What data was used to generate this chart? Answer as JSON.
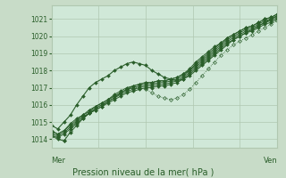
{
  "bg_color": "#c8dcc8",
  "plot_bg_color": "#d0e8d8",
  "grid_color": "#b0c8b0",
  "line_color": "#2a5e2a",
  "marker_color": "#2a5e2a",
  "title": "Pression niveau de la mer( hPa )",
  "xlabel_left": "Mer",
  "xlabel_right": "Ven",
  "ylabel_ticks": [
    1014,
    1015,
    1016,
    1017,
    1018,
    1019,
    1020,
    1021
  ],
  "ylim": [
    1013.5,
    1021.8
  ],
  "xlim": [
    0,
    48
  ],
  "series": [
    [
      1014.2,
      1014.1,
      1014.3,
      1014.6,
      1014.9,
      1015.2,
      1015.5,
      1015.7,
      1015.9,
      1016.1,
      1016.3,
      1016.5,
      1016.7,
      1016.8,
      1016.9,
      1017.0,
      1017.0,
      1017.1,
      1017.1,
      1017.2,
      1017.3,
      1017.5,
      1017.8,
      1018.1,
      1018.4,
      1018.7,
      1019.0,
      1019.3,
      1019.6,
      1019.8,
      1020.0,
      1020.2,
      1020.3,
      1020.5,
      1020.7,
      1020.8,
      1021.0
    ],
    [
      1014.3,
      1014.2,
      1014.4,
      1014.7,
      1015.0,
      1015.3,
      1015.5,
      1015.8,
      1016.0,
      1016.2,
      1016.4,
      1016.6,
      1016.8,
      1016.9,
      1017.0,
      1017.1,
      1017.1,
      1017.2,
      1017.2,
      1017.3,
      1017.4,
      1017.6,
      1017.9,
      1018.2,
      1018.5,
      1018.8,
      1019.1,
      1019.4,
      1019.7,
      1019.9,
      1020.1,
      1020.3,
      1020.4,
      1020.6,
      1020.8,
      1020.9,
      1021.1
    ],
    [
      1014.4,
      1014.3,
      1014.5,
      1014.8,
      1015.1,
      1015.4,
      1015.6,
      1015.9,
      1016.1,
      1016.3,
      1016.5,
      1016.7,
      1016.9,
      1017.0,
      1017.1,
      1017.2,
      1017.2,
      1017.3,
      1017.3,
      1017.4,
      1017.5,
      1017.7,
      1018.0,
      1018.3,
      1018.6,
      1018.9,
      1019.2,
      1019.5,
      1019.8,
      1020.0,
      1020.2,
      1020.4,
      1020.5,
      1020.7,
      1020.9,
      1021.0,
      1021.2
    ],
    [
      1014.5,
      1014.3,
      1014.5,
      1014.9,
      1015.2,
      1015.4,
      1015.7,
      1015.9,
      1016.1,
      1016.3,
      1016.6,
      1016.8,
      1017.0,
      1017.1,
      1017.2,
      1017.3,
      1017.3,
      1017.4,
      1017.4,
      1017.5,
      1017.6,
      1017.8,
      1018.0,
      1018.4,
      1018.7,
      1019.0,
      1019.3,
      1019.6,
      1019.9,
      1020.1,
      1020.3,
      1020.5,
      1020.6,
      1020.8,
      1021.0,
      1021.1,
      1021.3
    ],
    [
      1014.2,
      1014.0,
      1013.9,
      1014.4,
      1014.8,
      1015.2,
      1015.5,
      1015.7,
      1015.9,
      1016.2,
      1016.4,
      1016.7,
      1016.9,
      1017.1,
      1017.2,
      1017.3,
      1017.3,
      1017.4,
      1017.4,
      1017.5,
      1017.6,
      1017.8,
      1018.1,
      1018.5,
      1018.8,
      1019.1,
      1019.4,
      1019.6,
      1019.9,
      1020.1,
      1020.3,
      1020.5,
      1020.6,
      1020.8,
      1021.0,
      1021.1,
      1021.3
    ]
  ],
  "arc_series": [
    1014.8,
    1014.6,
    1015.0,
    1015.4,
    1016.0,
    1016.5,
    1017.0,
    1017.3,
    1017.5,
    1017.7,
    1018.0,
    1018.2,
    1018.4,
    1018.5,
    1018.4,
    1018.3,
    1018.0,
    1017.8,
    1017.6,
    1017.5,
    1017.4,
    1017.5,
    1017.7,
    1018.0,
    1018.3,
    1018.6,
    1018.9,
    1019.2,
    1019.5,
    1019.8,
    1020.0,
    1020.2,
    1020.4,
    1020.6,
    1020.8,
    1021.0,
    1021.2
  ],
  "low_arc": [
    1014.3,
    1014.1,
    1013.9,
    1014.5,
    1015.0,
    1015.3,
    1015.6,
    1015.8,
    1016.0,
    1016.3,
    1016.5,
    1016.7,
    1016.9,
    1017.0,
    1017.0,
    1016.9,
    1016.7,
    1016.5,
    1016.4,
    1016.3,
    1016.4,
    1016.6,
    1016.9,
    1017.3,
    1017.7,
    1018.1,
    1018.5,
    1018.9,
    1019.2,
    1019.5,
    1019.7,
    1019.9,
    1020.1,
    1020.3,
    1020.5,
    1020.7,
    1020.9
  ]
}
